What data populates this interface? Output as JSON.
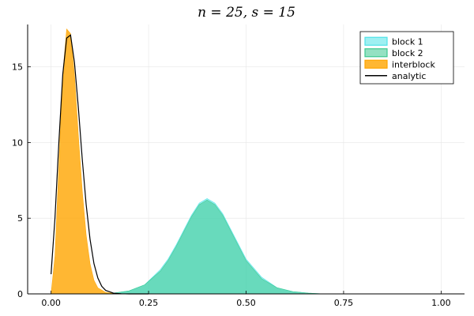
{
  "chart_data": {
    "type": "area",
    "title": "n = 25, s = 15",
    "xlabel": "",
    "ylabel": "",
    "xlim": [
      -0.06,
      1.06
    ],
    "ylim": [
      0,
      17.8
    ],
    "xticks": [
      0.0,
      0.25,
      0.5,
      0.75,
      1.0
    ],
    "xtick_labels": [
      "0.00",
      "0.25",
      "0.50",
      "0.75",
      "1.00"
    ],
    "yticks": [
      0,
      5,
      10,
      15
    ],
    "ytick_labels": [
      "0",
      "5",
      "10",
      "15"
    ],
    "grid": true,
    "legend_position": "top-right",
    "series": [
      {
        "name": "block 1",
        "kind": "histogram",
        "color": "#4fe3e8",
        "x": [
          0.12,
          0.16,
          0.2,
          0.24,
          0.28,
          0.3,
          0.32,
          0.34,
          0.36,
          0.38,
          0.4,
          0.42,
          0.44,
          0.46,
          0.48,
          0.5,
          0.54,
          0.58,
          0.62,
          0.66,
          0.7
        ],
        "y": [
          0.0,
          0.05,
          0.2,
          0.6,
          1.6,
          2.3,
          3.2,
          4.2,
          5.2,
          6.0,
          6.3,
          6.0,
          5.3,
          4.3,
          3.3,
          2.3,
          1.1,
          0.4,
          0.15,
          0.05,
          0.0
        ]
      },
      {
        "name": "block 2",
        "kind": "histogram",
        "color": "#3cc98f",
        "x": [
          0.12,
          0.16,
          0.2,
          0.24,
          0.28,
          0.3,
          0.32,
          0.34,
          0.36,
          0.38,
          0.4,
          0.42,
          0.44,
          0.46,
          0.48,
          0.5,
          0.54,
          0.58,
          0.62,
          0.66,
          0.7
        ],
        "y": [
          0.0,
          0.05,
          0.2,
          0.6,
          1.5,
          2.2,
          3.1,
          4.1,
          5.1,
          5.9,
          6.2,
          5.9,
          5.2,
          4.2,
          3.2,
          2.2,
          1.0,
          0.4,
          0.15,
          0.05,
          0.0
        ]
      },
      {
        "name": "interblock",
        "kind": "histogram",
        "color": "#ffa500",
        "x": [
          0.0,
          0.01,
          0.02,
          0.03,
          0.04,
          0.05,
          0.06,
          0.07,
          0.08,
          0.09,
          0.1,
          0.11,
          0.12,
          0.14,
          0.16,
          0.18
        ],
        "y": [
          0.0,
          2.5,
          8.5,
          14.5,
          17.5,
          17.2,
          14.5,
          10.5,
          6.8,
          3.9,
          2.0,
          0.9,
          0.4,
          0.1,
          0.03,
          0.0
        ]
      },
      {
        "name": "analytic",
        "kind": "line",
        "color": "#000000",
        "x": [
          0.0,
          0.01,
          0.02,
          0.03,
          0.04,
          0.05,
          0.06,
          0.07,
          0.08,
          0.09,
          0.1,
          0.11,
          0.12,
          0.13,
          0.14,
          0.16,
          0.18,
          0.2,
          0.25
        ],
        "y": [
          1.3,
          5.0,
          10.0,
          14.5,
          16.9,
          17.1,
          15.3,
          12.3,
          8.9,
          5.9,
          3.6,
          2.0,
          1.05,
          0.5,
          0.23,
          0.05,
          0.01,
          0.0,
          0.0
        ]
      }
    ]
  }
}
